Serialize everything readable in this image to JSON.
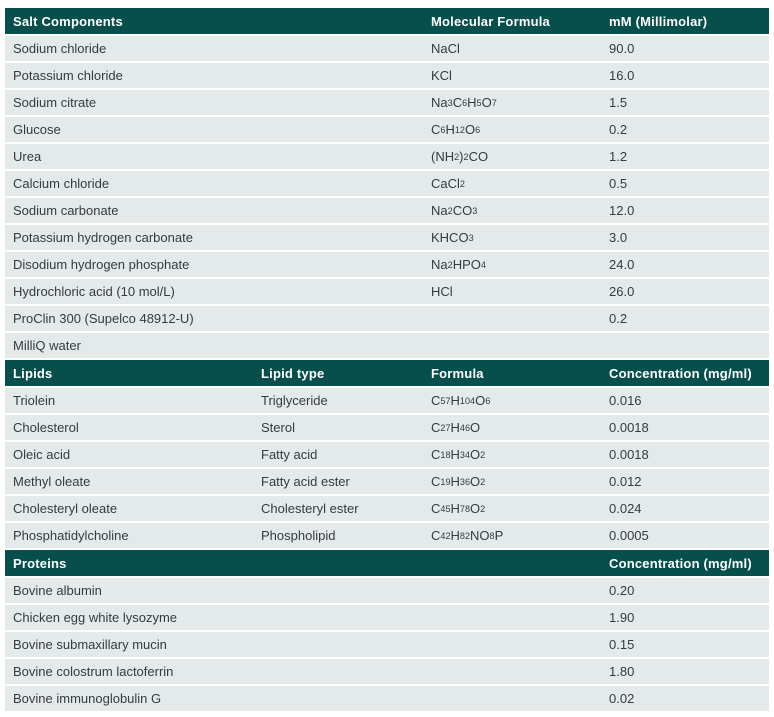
{
  "colors": {
    "header_bg": "#074f4c",
    "row_bg": "#e4e9ea",
    "header_text": "#ffffff",
    "row_text": "#363b3c"
  },
  "sections": [
    {
      "id": "salt-components",
      "headers": [
        "Salt Components",
        "Molecular Formula",
        "mM (Millimolar)"
      ],
      "rows": [
        {
          "name": "Sodium chloride",
          "formula": "NaCl",
          "value": "90.0"
        },
        {
          "name": "Potassium chloride",
          "formula": "KCl",
          "value": "16.0"
        },
        {
          "name": "Sodium citrate",
          "formula": "Na{3}C{6}H{5}O{7}",
          "value": "1.5"
        },
        {
          "name": "Glucose",
          "formula": "C{6}H{12}O{6}",
          "value": "0.2"
        },
        {
          "name": "Urea",
          "formula": "(NH{2}){2}CO",
          "value": "1.2"
        },
        {
          "name": "Calcium chloride",
          "formula": "CaCl{2}",
          "value": "0.5"
        },
        {
          "name": "Sodium carbonate",
          "formula": "Na{2}CO{3}",
          "value": "12.0"
        },
        {
          "name": "Potassium hydrogen carbonate",
          "formula": "KHCO{3}",
          "value": "3.0"
        },
        {
          "name": "Disodium hydrogen phosphate",
          "formula": "Na{2}HPO{4}",
          "value": "24.0"
        },
        {
          "name": "Hydrochloric acid (10 mol/L)",
          "formula": "HCl",
          "value": "26.0"
        },
        {
          "name": "ProClin 300 (Supelco 48912-U)",
          "formula": "",
          "value": "0.2"
        },
        {
          "name": "MilliQ water",
          "formula": "",
          "value": ""
        }
      ]
    },
    {
      "id": "lipids",
      "headers": [
        "Lipids",
        "Lipid type",
        "Formula",
        "Concentration (mg/ml)"
      ],
      "rows": [
        {
          "name": "Triolein",
          "type": "Triglyceride",
          "formula": "C{57}H{104}O{6}",
          "value": "0.016"
        },
        {
          "name": "Cholesterol",
          "type": "Sterol",
          "formula": "C{27}H{46}O",
          "value": "0.0018"
        },
        {
          "name": "Oleic acid",
          "type": "Fatty acid",
          "formula": "C{18}H{34}O{2}",
          "value": "0.0018"
        },
        {
          "name": "Methyl oleate",
          "type": "Fatty acid ester",
          "formula": "C{19}H{36}O{2}",
          "value": "0.012"
        },
        {
          "name": "Cholesteryl oleate",
          "type": "Cholesteryl ester",
          "formula": "C{45}H{78}O{2}",
          "value": "0.024"
        },
        {
          "name": "Phosphatidylcholine",
          "type": "Phospholipid",
          "formula": "C{42}H{82}NO{8}P",
          "value": "0.0005"
        }
      ]
    },
    {
      "id": "proteins",
      "headers": [
        "Proteins",
        "Concentration (mg/ml)"
      ],
      "rows": [
        {
          "name": "Bovine albumin",
          "value": "0.20"
        },
        {
          "name": "Chicken egg white lysozyme",
          "value": "1.90"
        },
        {
          "name": "Bovine submaxillary mucin",
          "value": "0.15"
        },
        {
          "name": "Bovine colostrum lactoferrin",
          "value": "1.80"
        },
        {
          "name": "Bovine immunoglobulin G",
          "value": "0.02"
        }
      ]
    }
  ]
}
